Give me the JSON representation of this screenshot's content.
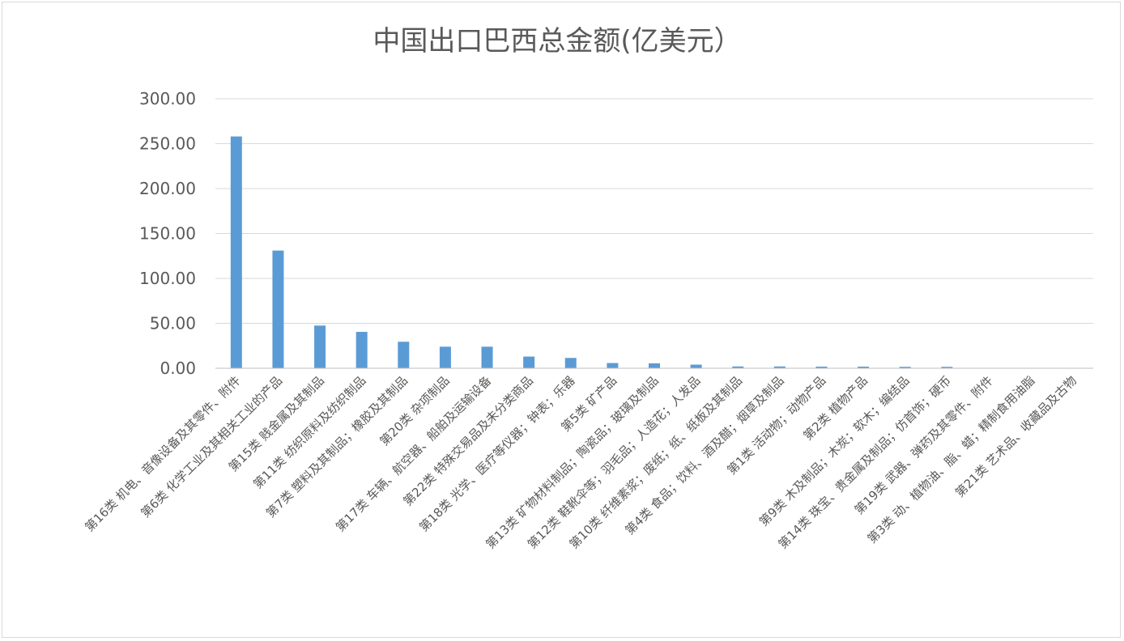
{
  "chart_data": {
    "type": "bar",
    "title": "中国出口巴西总金额(亿美元）",
    "xlabel": "",
    "ylabel": "",
    "ylim": [
      0,
      300
    ],
    "yticks": [
      "0.00",
      "50.00",
      "100.00",
      "150.00",
      "200.00",
      "250.00",
      "300.00"
    ],
    "grid": true,
    "legend": "none",
    "bar_color": "#5b9bd5",
    "categories": [
      "第16类 机电、音像设备及其零件、附件",
      "第6类 化学工业及其相关工业的产品",
      "第15类 贱金属及其制品",
      "第11类 纺织原料及纺织制品",
      "第7类 塑料及其制品；橡胶及其制品",
      "第20类 杂项制品",
      "第17类 车辆、航空器、船舶及运输设备",
      "第22类 特殊交易品及未分类商品",
      "第18类 光学、医疗等仪器；钟表；乐器",
      "第5类 矿产品",
      "第13类 矿物材料制品；陶瓷品；玻璃及制品",
      "第12类 鞋靴伞等；羽毛品；人造花；人发品",
      "第10类 纤维素浆；废纸；纸、纸板及其制品",
      "第4类 食品；饮料、酒及醋；烟草及制品",
      "第1类 活动物；动物产品",
      "第2类 植物产品",
      "第9类 木及制品；木炭；软木；编结品",
      "第14类 珠宝、贵金属及制品；仿首饰；硬币",
      "第19类 武器、弹药及其零件、附件",
      "第3类 动、植物油、脂、蜡；精制食用油脂",
      "第21类 艺术品、收藏品及古物"
    ],
    "values": [
      258,
      131,
      47.5,
      40.5,
      29.5,
      24,
      24,
      13,
      11.5,
      5.8,
      5.5,
      4,
      2,
      2,
      1.8,
      1.8,
      1.6,
      1.6,
      0.05,
      0.03,
      0.02
    ]
  }
}
